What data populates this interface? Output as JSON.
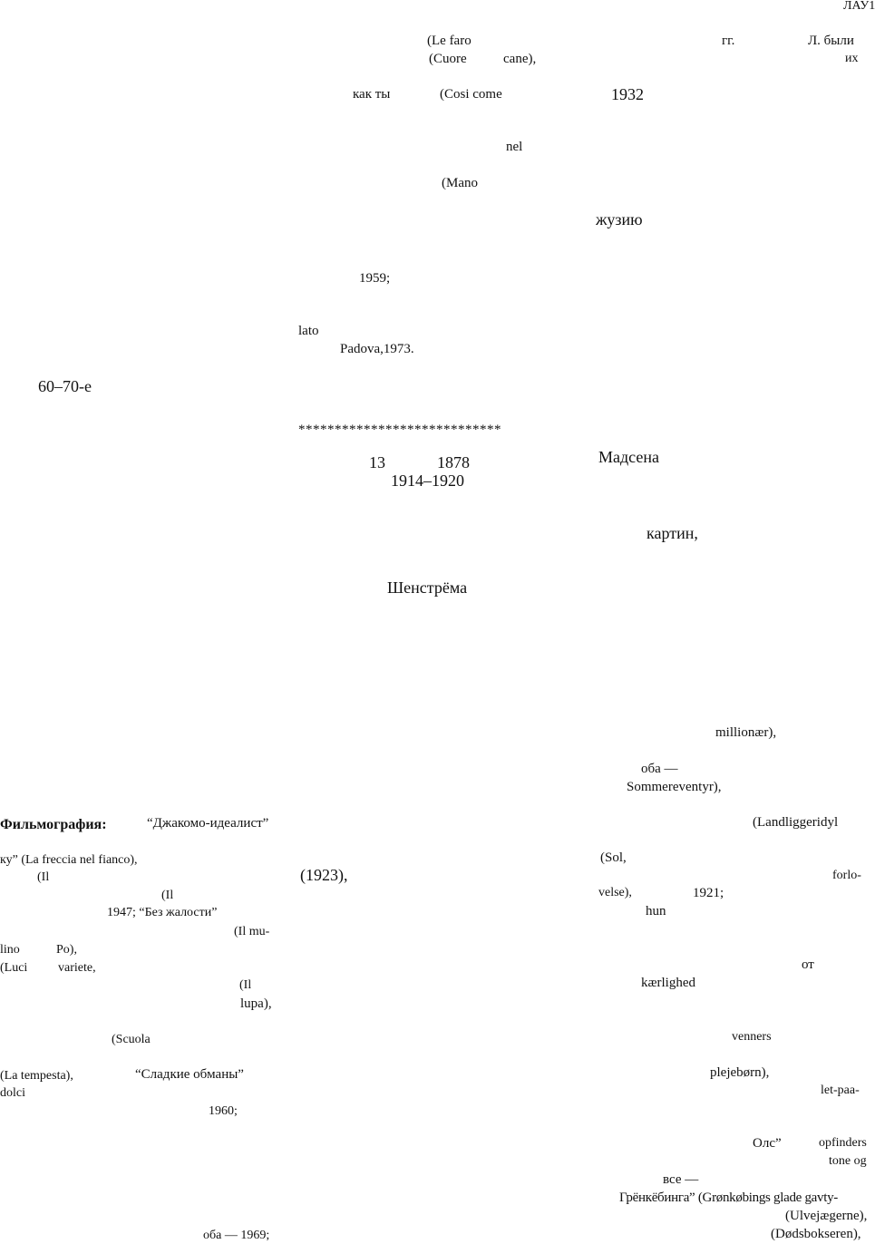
{
  "header": {
    "running_head": "ЛАУ1"
  },
  "column_middle": {
    "fragments": [
      "(Le faro",
      "(Cuore",
      "cane),",
      "как ты",
      "(Cosi come",
      "nel",
      "(Mano",
      "1959;",
      "lato",
      "Padova,1973.",
      "****************************",
      "13",
      "1878",
      "1914–1920",
      "Шенстрёма",
      "(1923),"
    ]
  },
  "column_right": {
    "fragments": [
      "гг.",
      "Л. были",
      "их",
      "1932",
      "жузию",
      "Мадсена",
      "картин,",
      "millionær),",
      "оба —",
      "Sommereventyr),",
      "(Landliggeridyl",
      "(Sol,",
      "forlo-",
      "velse),",
      "1921;",
      "hun",
      "от",
      "kærlighed",
      "venners",
      "plejebørn),",
      "let-paa-",
      "Олс”",
      "opfinders",
      "tone og",
      "все —",
      "Грёнкёбинга” (Grønkøbings glade gavty-",
      "(Ulvejægerne),",
      "(Dødsbokseren),"
    ]
  },
  "column_left": {
    "decade": "60–70-е",
    "filmography_label": "Фильмография:",
    "filmography_first_title": "“Джакомо-идеалист”",
    "fragments": [
      "ку” (La freccia nel fianco),",
      "(Il",
      "(Il",
      "1947; “Без жалости”",
      "(Il mu-",
      "lino",
      "Po),",
      "(Luci",
      "variete,",
      "(Il",
      "lupa),",
      "(Scuola",
      "(La tempesta),",
      "“Сладкие обманы”",
      "dolci",
      "1960;",
      "оба — 1969;"
    ]
  }
}
